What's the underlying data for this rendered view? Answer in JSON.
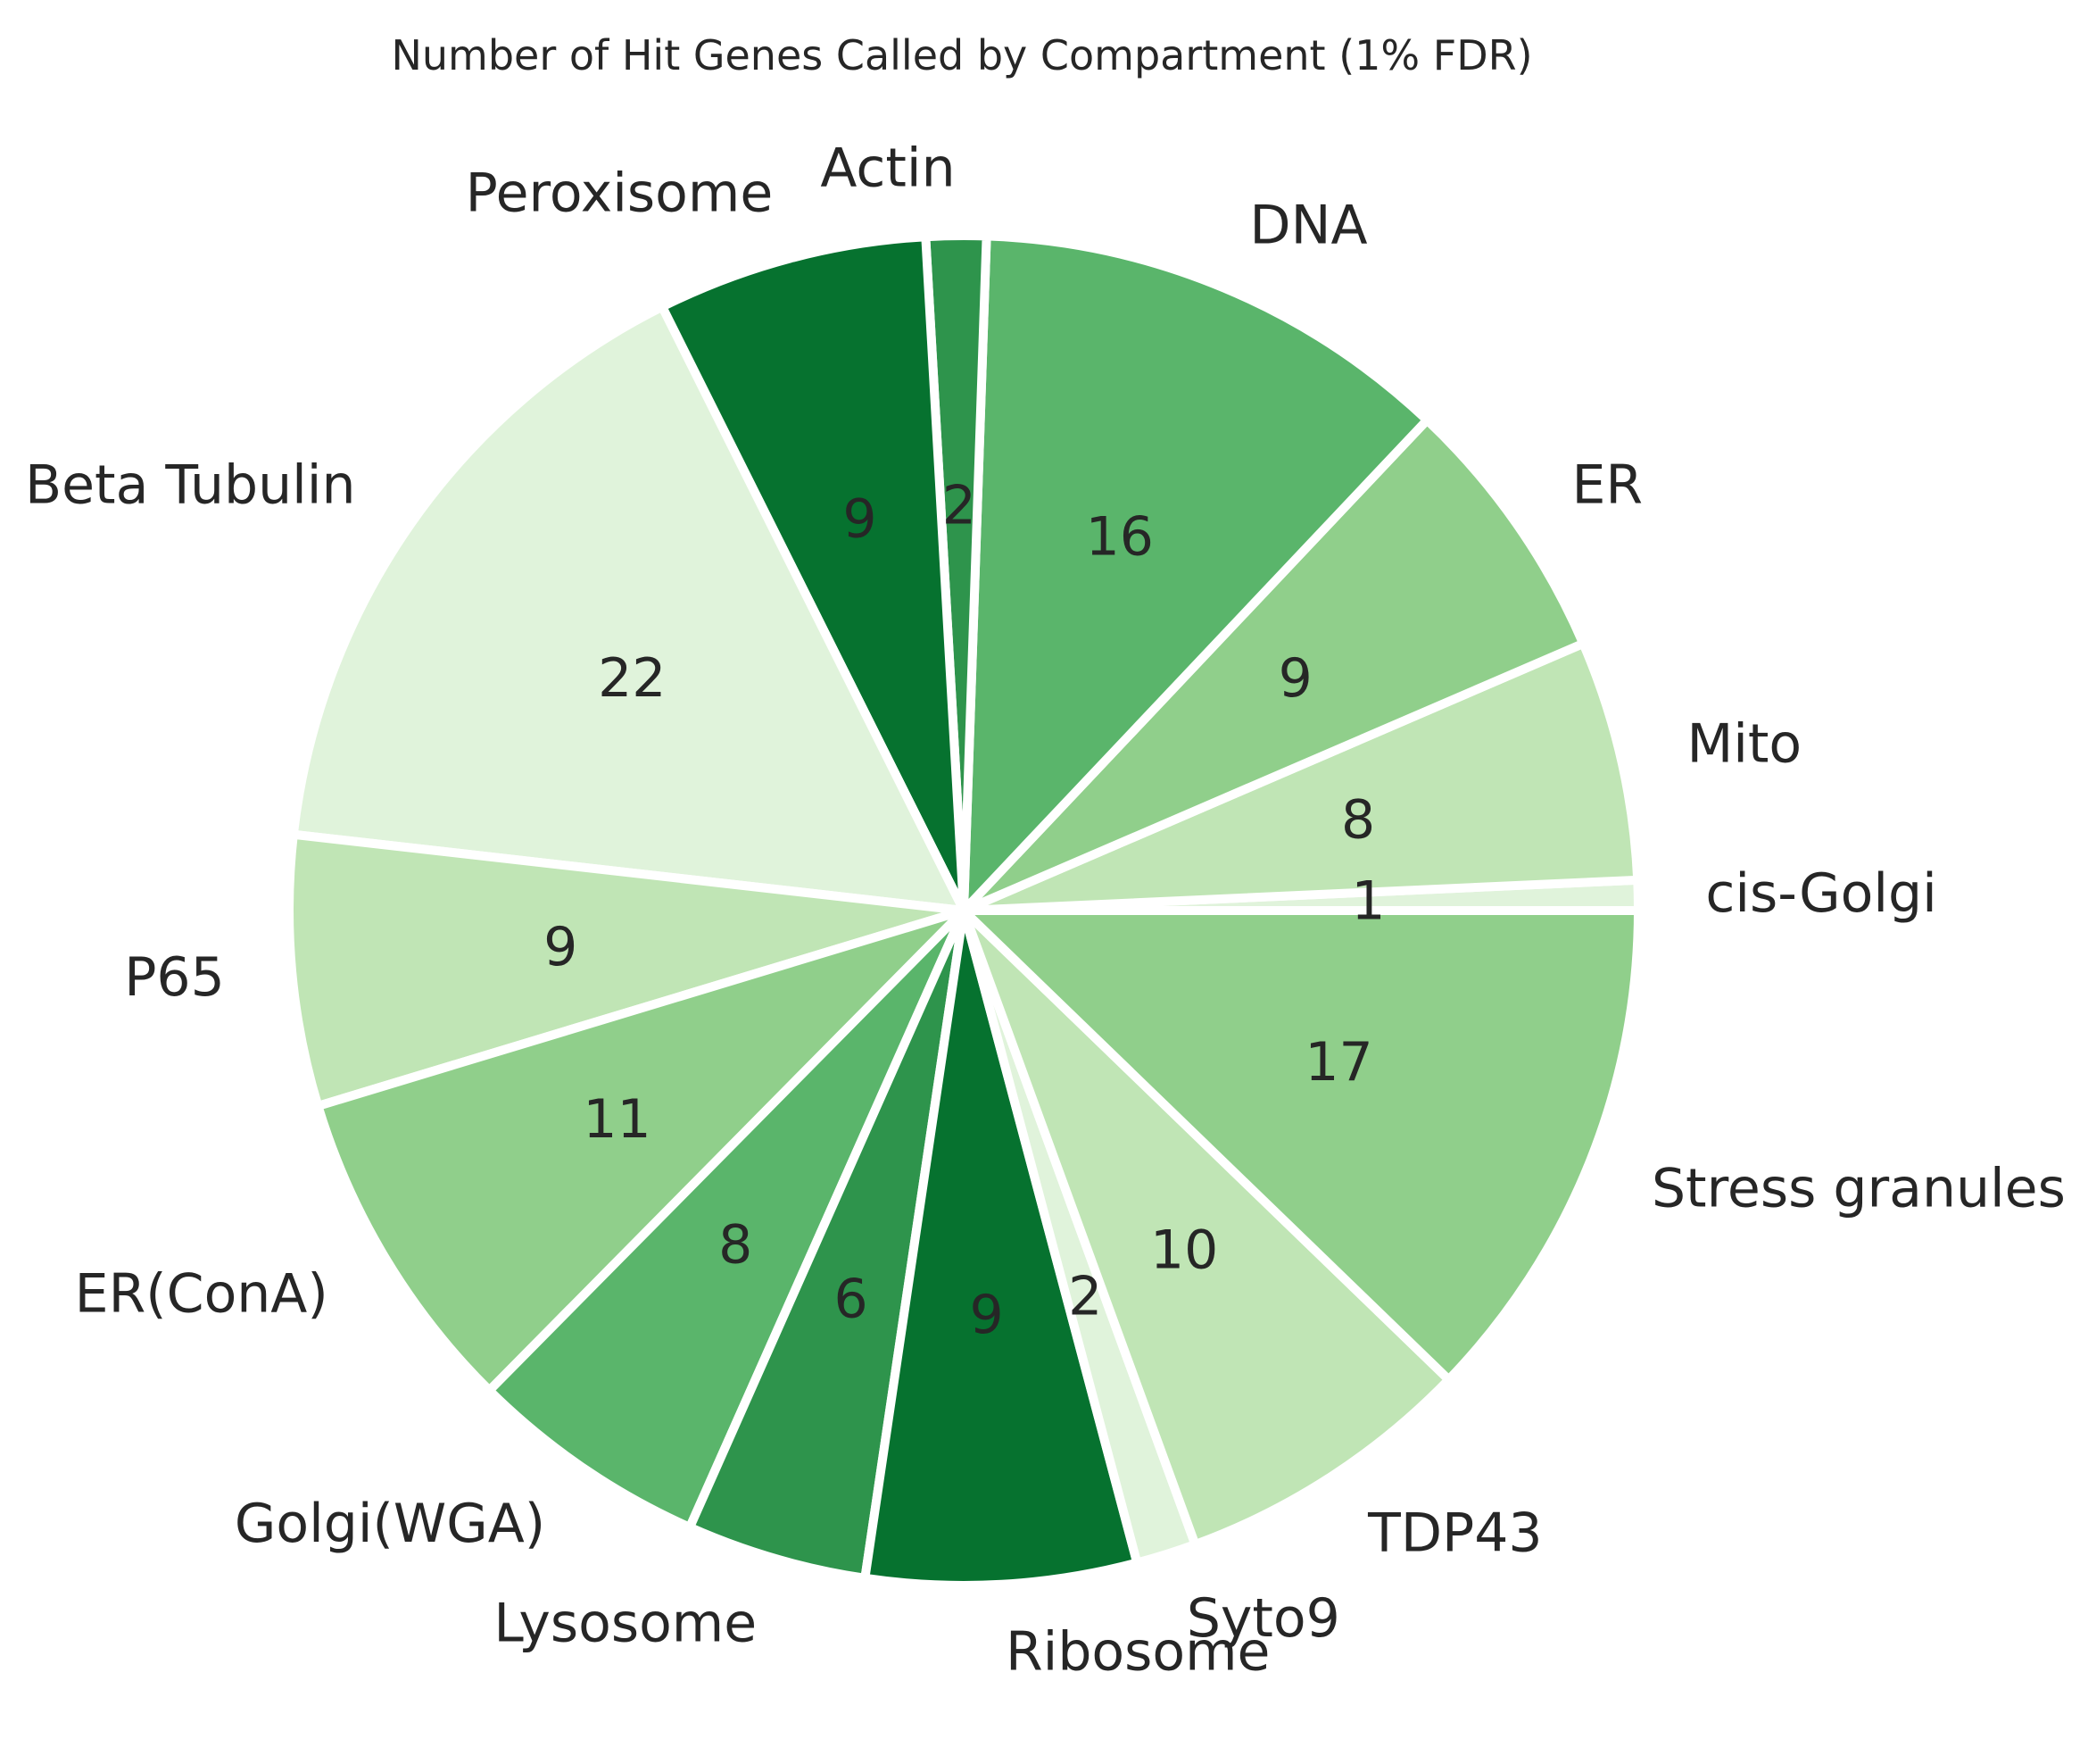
{
  "chart_data": {
    "type": "pie",
    "title": "Number of Hit Genes Called by Compartment (1% FDR)",
    "start_angle_deg": 0,
    "direction": "counterclockwise",
    "slices": [
      {
        "label": "cis-Golgi",
        "value": 1,
        "color": "#e0f3db"
      },
      {
        "label": "Mito",
        "value": 8,
        "color": "#c0e5b5"
      },
      {
        "label": "ER",
        "value": 9,
        "color": "#90cf8b"
      },
      {
        "label": "DNA",
        "value": 16,
        "color": "#5ab56b"
      },
      {
        "label": "Actin",
        "value": 2,
        "color": "#2e944c"
      },
      {
        "label": "Peroxisome",
        "value": 9,
        "color": "#06722f"
      },
      {
        "label": "Beta Tubulin",
        "value": 22,
        "color": "#e0f3db"
      },
      {
        "label": "P65",
        "value": 9,
        "color": "#c0e5b5"
      },
      {
        "label": "ER(ConA)",
        "value": 11,
        "color": "#90cf8b"
      },
      {
        "label": "Golgi(WGA)",
        "value": 8,
        "color": "#5ab56b"
      },
      {
        "label": "Lysosome",
        "value": 6,
        "color": "#2e944c"
      },
      {
        "label": "Ribosome",
        "value": 9,
        "color": "#06722f"
      },
      {
        "label": "Syto9",
        "value": 2,
        "color": "#e0f3db"
      },
      {
        "label": "TDP43",
        "value": 10,
        "color": "#c0e5b5"
      },
      {
        "label": "Stress granules",
        "value": 17,
        "color": "#90cf8b"
      }
    ]
  }
}
